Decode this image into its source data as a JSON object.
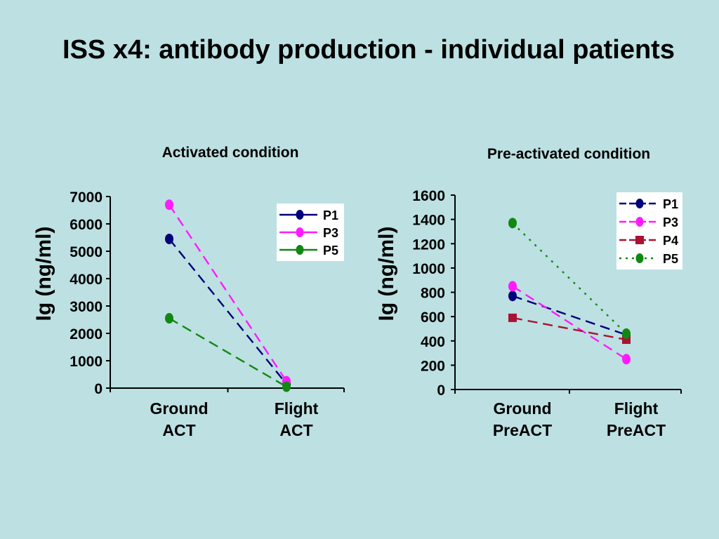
{
  "page": {
    "title": "ISS x4: antibody production - individual patients"
  },
  "chart_data": [
    {
      "type": "line",
      "title": "Activated condition",
      "ylabel": "Ig (ng/ml)",
      "categories": [
        "Ground\nACT",
        "Flight\nACT"
      ],
      "ylim": [
        0,
        7000
      ],
      "yticks": [
        0,
        1000,
        2000,
        3000,
        4000,
        5000,
        6000,
        7000
      ],
      "legend_position": "top-right",
      "grid": false,
      "series": [
        {
          "name": "P1",
          "values": [
            5450,
            150
          ],
          "color": "#00007a",
          "dash": "dashed",
          "marker": "circle"
        },
        {
          "name": "P3",
          "values": [
            6700,
            250
          ],
          "color": "#ff1aff",
          "dash": "dashed",
          "marker": "circle"
        },
        {
          "name": "P5",
          "values": [
            2550,
            50
          ],
          "color": "#118811",
          "dash": "dashed",
          "marker": "circle"
        }
      ]
    },
    {
      "type": "line",
      "title": "Pre-activated condition",
      "ylabel": "Ig (ng/ml)",
      "categories": [
        "Ground\nPreACT",
        "Flight\nPreACT"
      ],
      "ylim": [
        0,
        1600
      ],
      "yticks": [
        0,
        200,
        400,
        600,
        800,
        1000,
        1200,
        1400,
        1600
      ],
      "legend_position": "top-right",
      "grid": false,
      "series": [
        {
          "name": "P1",
          "values": [
            770,
            450
          ],
          "color": "#00007a",
          "dash": "dashed",
          "marker": "circle"
        },
        {
          "name": "P3",
          "values": [
            850,
            250
          ],
          "color": "#ff1aff",
          "dash": "dashed",
          "marker": "circle"
        },
        {
          "name": "P4",
          "values": [
            590,
            410
          ],
          "color": "#aa1133",
          "dash": "dashed",
          "marker": "square"
        },
        {
          "name": "P5",
          "values": [
            1370,
            460
          ],
          "color": "#118811",
          "dash": "dotted",
          "marker": "circle"
        }
      ]
    }
  ]
}
